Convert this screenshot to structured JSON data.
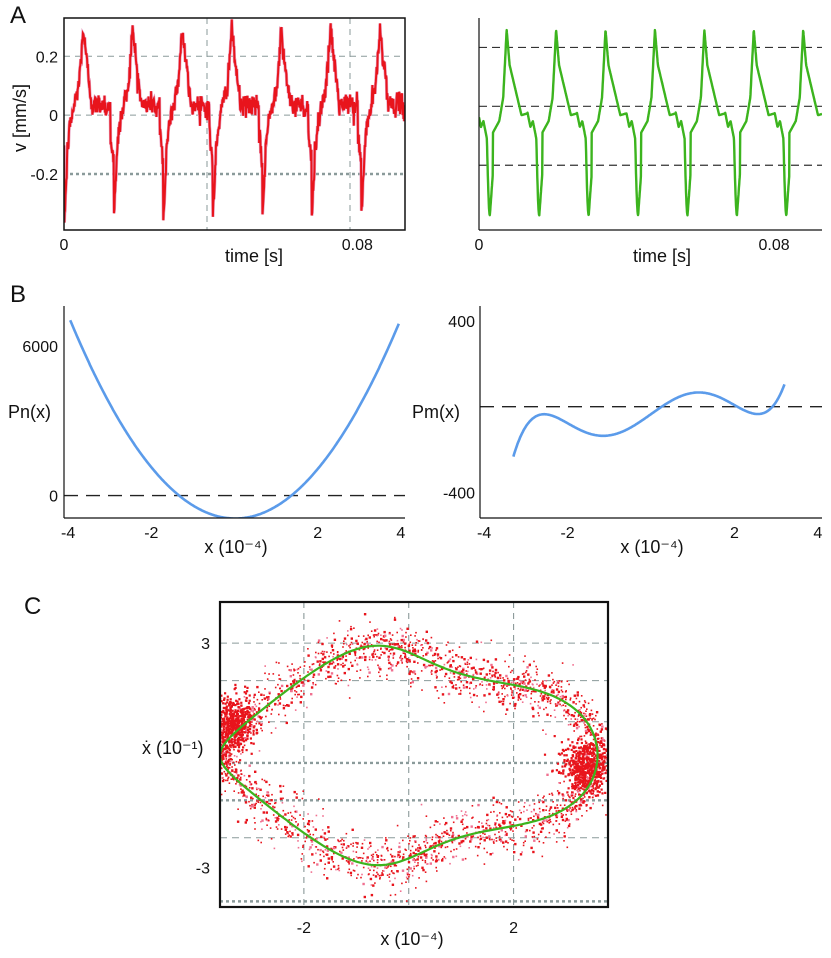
{
  "panel_letters": [
    "A",
    "B",
    "C"
  ],
  "chart_data": [
    {
      "id": "A_left",
      "type": "line",
      "title": "",
      "xlabel": "time [s]",
      "ylabel": "v [mm/s]",
      "xlim": [
        0,
        0.093
      ],
      "ylim": [
        -0.39,
        0.33
      ],
      "x_ticks": [
        {
          "value": 0,
          "label": "0"
        },
        {
          "value": 0.08,
          "label": "0.08"
        }
      ],
      "y_ticks": [
        {
          "value": 0.2,
          "label": "0.2"
        },
        {
          "value": 0,
          "label": "0"
        },
        {
          "value": -0.2,
          "label": "-0.2"
        }
      ],
      "h_gridlines": [
        0.2,
        0,
        -0.2
      ],
      "v_gridlines": [
        0.039,
        0.078
      ],
      "series": [
        {
          "name": "measured velocity",
          "color": "#e8141c",
          "period": 0.0135,
          "peak_max": 0.29,
          "trough_min": -0.36
        }
      ]
    },
    {
      "id": "A_right",
      "type": "line",
      "title": "",
      "xlabel": "time [s]",
      "ylabel": "",
      "xlim": [
        0,
        0.093
      ],
      "ylim": [
        -0.39,
        0.33
      ],
      "x_ticks": [
        {
          "value": 0,
          "label": "0"
        },
        {
          "value": 0.08,
          "label": "0.08"
        }
      ],
      "y_ticks": [],
      "h_gridlines": [
        0.23,
        0.03,
        -0.17
      ],
      "series": [
        {
          "name": "model velocity",
          "color": "#3cb41e",
          "period": 0.0134,
          "peak_max": 0.29,
          "trough_min": -0.34
        }
      ]
    },
    {
      "id": "B_left",
      "type": "line",
      "title": "",
      "xlabel": "x (10⁻⁴)",
      "ylabel": "Pn(x)",
      "xlim": [
        -4.1,
        4.1
      ],
      "ylim": [
        -900,
        7600
      ],
      "x_ticks": [
        {
          "value": -4,
          "label": "-4"
        },
        {
          "value": -2,
          "label": "-2"
        },
        {
          "value": 2,
          "label": "2"
        },
        {
          "value": 4,
          "label": "4"
        }
      ],
      "y_ticks": [
        {
          "value": 6000,
          "label": "6000"
        },
        {
          "value": 0,
          "label": "0"
        }
      ],
      "dashed_zero": 0,
      "series": [
        {
          "name": "Pn(x)",
          "color": "#5b9bea",
          "formula": "a*x^2 + b*x + c",
          "a": 505,
          "b": -18,
          "c": -920
        }
      ]
    },
    {
      "id": "B_right",
      "type": "line",
      "title": "",
      "xlabel": "x (10⁻⁴)",
      "ylabel": "Pm(x)",
      "xlim": [
        -4.1,
        4.1
      ],
      "ylim": [
        -520,
        470
      ],
      "x_ticks": [
        {
          "value": -4,
          "label": "-4"
        },
        {
          "value": -2,
          "label": "-2"
        },
        {
          "value": 2,
          "label": "2"
        },
        {
          "value": 4,
          "label": "4"
        }
      ],
      "y_ticks": [
        {
          "value": 400,
          "label": "400"
        },
        {
          "value": -400,
          "label": "-400"
        }
      ],
      "dashed_zero": 0,
      "series": [
        {
          "name": "Pm(x)",
          "color": "#5b9bea",
          "formula": "c5*x^5 + c3*x^3 + c1*x + c2*x^2 + c0",
          "c5": 3.2,
          "c3": -42,
          "c1": 138,
          "c2": 0,
          "c0": -35
        }
      ]
    },
    {
      "id": "C",
      "type": "scatter",
      "title": "",
      "xlabel": "x (10⁻⁴)",
      "ylabel": "ẋ (10⁻¹)",
      "xlim": [
        -3.6,
        3.8
      ],
      "ylim": [
        -4.05,
        4.1
      ],
      "x_ticks": [
        {
          "value": -2,
          "label": "-2"
        },
        {
          "value": 2,
          "label": "2"
        }
      ],
      "y_ticks": [
        {
          "value": 3,
          "label": "3"
        },
        {
          "value": -3,
          "label": "-3"
        }
      ],
      "v_gridlines": [
        -2,
        0,
        2
      ],
      "h_gridlines": [
        3,
        2,
        0.9,
        -0.2,
        -1.2,
        -2.2,
        -3.9
      ],
      "series": [
        {
          "name": "measured phase points",
          "color": "#e8141c",
          "point_count": 2600
        },
        {
          "name": "model limit cycle",
          "color": "#3cb41e"
        }
      ]
    }
  ]
}
